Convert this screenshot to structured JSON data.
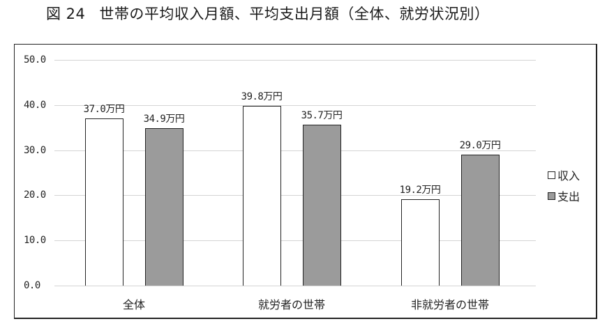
{
  "title": {
    "figure_number": "図 24",
    "text": "世帯の平均収入月額、平均支出月額（全体、就労状況別）"
  },
  "colors": {
    "income": "#ffffff",
    "expense": "#9b9b9b",
    "gridline": "#d4d4d4",
    "border": "#222222"
  },
  "legend": {
    "items": [
      {
        "label": "収入",
        "color": "#ffffff"
      },
      {
        "label": "支出",
        "color": "#9b9b9b"
      }
    ]
  },
  "y_axis": {
    "ticks": [
      "50.0",
      "40.0",
      "30.0",
      "20.0",
      "10.0",
      "0.0"
    ]
  },
  "categories": [
    "全体",
    "就労者の世帯",
    "非就労者の世帯"
  ],
  "labels": {
    "income": [
      "37.0万円",
      "39.8万円",
      "19.2万円"
    ],
    "expense": [
      "34.9万円",
      "35.7万円",
      "29.0万円"
    ]
  },
  "chart_data": {
    "type": "bar",
    "title": "図 24 世帯の平均収入月額、平均支出月額（全体、就労状況別）",
    "categories": [
      "全体",
      "就労者の世帯",
      "非就労者の世帯"
    ],
    "series": [
      {
        "name": "収入",
        "values": [
          37.0,
          39.8,
          19.2
        ],
        "color": "#ffffff"
      },
      {
        "name": "支出",
        "values": [
          34.9,
          35.7,
          29.0
        ],
        "color": "#9b9b9b"
      }
    ],
    "data_label_suffix": "万円",
    "xlabel": "",
    "ylabel": "",
    "ylim": [
      0,
      50
    ],
    "yticks": [
      0,
      10,
      20,
      30,
      40,
      50
    ],
    "grid": true,
    "legend_position": "right"
  }
}
